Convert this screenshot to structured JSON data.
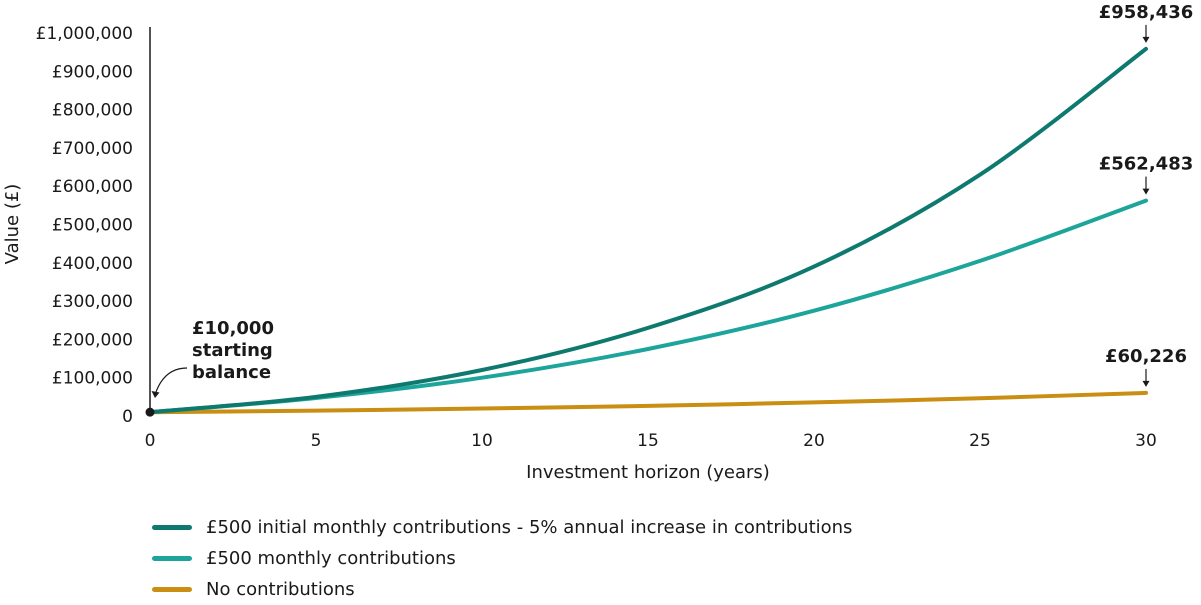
{
  "chart_data": {
    "type": "line",
    "xlabel": "Investment horizon (years)",
    "ylabel": "Value (£)",
    "xlim": [
      0,
      30
    ],
    "ylim": [
      0,
      1000000
    ],
    "xticks": [
      0,
      5,
      10,
      15,
      20,
      25,
      30
    ],
    "xtick_labels": [
      "0",
      "5",
      "10",
      "15",
      "20",
      "25",
      "30"
    ],
    "yticks": [
      0,
      100000,
      200000,
      300000,
      400000,
      500000,
      600000,
      700000,
      800000,
      900000,
      1000000
    ],
    "ytick_labels": [
      "0",
      "£100,000",
      "£200,000",
      "£300,000",
      "£400,000",
      "£500,000",
      "£600,000",
      "£700,000",
      "£800,000",
      "£900,000",
      "£1,000,000"
    ],
    "grid": false,
    "legend_position": "bottom-left",
    "start": {
      "x": 0,
      "y": 10000,
      "label_lines": [
        "£10,000",
        "starting",
        "balance"
      ]
    },
    "x": [
      0,
      5,
      10,
      15,
      20,
      25,
      30
    ],
    "series": [
      {
        "name": "£500 initial monthly contributions - 5% annual increase in contributions",
        "color": "#0e7a6f",
        "values": [
          10000,
          50000,
          120000,
          230000,
          390000,
          630000,
          958436
        ],
        "end_label": "£958,436"
      },
      {
        "name": "£500 monthly contributions",
        "color": "#1ea59b",
        "values": [
          10000,
          47000,
          100000,
          175000,
          275000,
          405000,
          562483
        ],
        "end_label": "£562,483"
      },
      {
        "name": "No contributions",
        "color": "#c98e12",
        "values": [
          10000,
          14000,
          19500,
          26500,
          35500,
          46500,
          60226
        ],
        "end_label": "£60,226"
      }
    ]
  }
}
